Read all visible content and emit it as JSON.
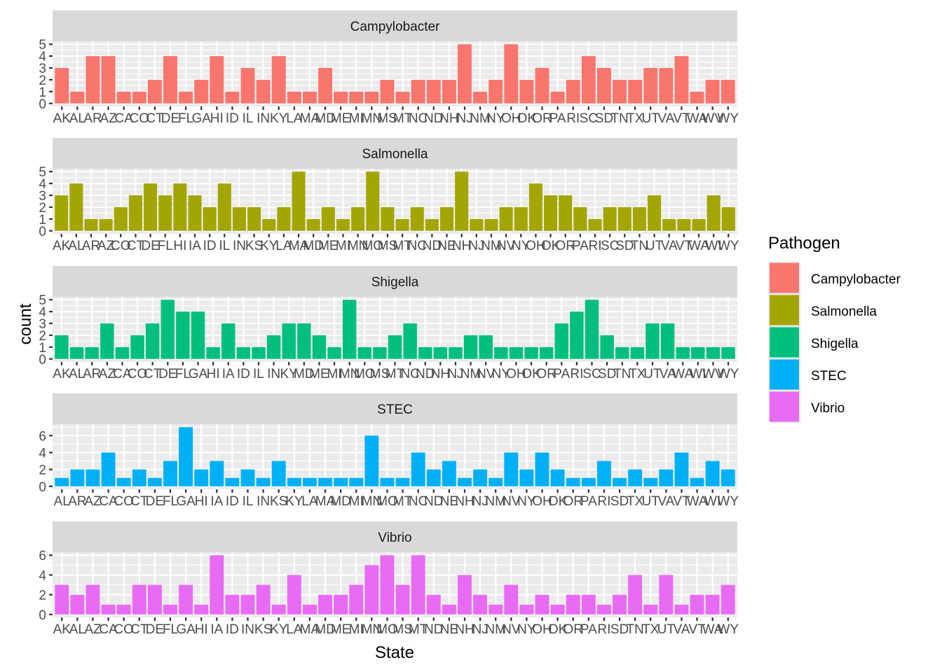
{
  "chart_data": {
    "type": "bar",
    "xlabel": "State",
    "ylabel": "count",
    "legend": {
      "title": "Pathogen",
      "position": "right",
      "entries": [
        {
          "label": "Campylobacter",
          "color": "#F8766D"
        },
        {
          "label": "Salmonella",
          "color": "#A3A500"
        },
        {
          "label": "Shigella",
          "color": "#00BF7D"
        },
        {
          "label": "STEC",
          "color": "#00B0F6"
        },
        {
          "label": "Vibrio",
          "color": "#E76BF3"
        }
      ]
    },
    "panels": [
      {
        "title": "Campylobacter",
        "color": "#F8766D",
        "ylim": [
          0,
          5
        ],
        "yticks": [
          0,
          1,
          2,
          3,
          4,
          5
        ],
        "categories": [
          "AK",
          "AL",
          "AR",
          "AZ",
          "CA",
          "CO",
          "CT",
          "DE",
          "FL",
          "GA",
          "HI",
          "ID",
          "IL",
          "IN",
          "KY",
          "LA",
          "MA",
          "MD",
          "ME",
          "MI",
          "MN",
          "MS",
          "MT",
          "NC",
          "ND",
          "NH",
          "NJ",
          "NM",
          "NY",
          "OH",
          "OK",
          "OR",
          "PA",
          "RI",
          "SC",
          "SD",
          "TN",
          "TX",
          "UT",
          "VA",
          "VT",
          "WA",
          "WV",
          "WY"
        ],
        "values": [
          3,
          1,
          4,
          4,
          1,
          1,
          2,
          4,
          1,
          2,
          4,
          1,
          3,
          2,
          4,
          1,
          1,
          3,
          1,
          1,
          1,
          2,
          1,
          2,
          2,
          2,
          5,
          1,
          2,
          5,
          2,
          3,
          1,
          2,
          4,
          3,
          2,
          2,
          3,
          3,
          4,
          1,
          2,
          2
        ]
      },
      {
        "title": "Salmonella",
        "color": "#A3A500",
        "ylim": [
          0,
          5
        ],
        "yticks": [
          0,
          1,
          2,
          3,
          4,
          5
        ],
        "categories": [
          "AK",
          "AL",
          "AR",
          "AZ",
          "CO",
          "CT",
          "DE",
          "FL",
          "HI",
          "IA",
          "ID",
          "IL",
          "IN",
          "KS",
          "KY",
          "LA",
          "MA",
          "MD",
          "ME",
          "MI",
          "MN",
          "MO",
          "MS",
          "MT",
          "NC",
          "ND",
          "NE",
          "NH",
          "NJ",
          "NM",
          "NV",
          "NY",
          "OH",
          "OK",
          "OR",
          "PA",
          "RI",
          "SC",
          "SD",
          "TN",
          "UT",
          "VA",
          "VT",
          "WA",
          "WI",
          "WY"
        ],
        "values": [
          3,
          4,
          1,
          1,
          2,
          3,
          4,
          3,
          4,
          3,
          2,
          4,
          2,
          2,
          1,
          2,
          5,
          1,
          2,
          1,
          2,
          5,
          2,
          1,
          2,
          1,
          2,
          5,
          1,
          1,
          2,
          2,
          4,
          3,
          3,
          2,
          1,
          2,
          2,
          2,
          3,
          1,
          1,
          1,
          3,
          2
        ]
      },
      {
        "title": "Shigella",
        "color": "#00BF7D",
        "ylim": [
          0,
          5
        ],
        "yticks": [
          0,
          1,
          2,
          3,
          4,
          5
        ],
        "categories": [
          "AK",
          "AL",
          "AR",
          "AZ",
          "CA",
          "CO",
          "CT",
          "DE",
          "FL",
          "GA",
          "HI",
          "IA",
          "ID",
          "IL",
          "IN",
          "KY",
          "MD",
          "ME",
          "MI",
          "MN",
          "MO",
          "MS",
          "MT",
          "NC",
          "ND",
          "NH",
          "NJ",
          "NM",
          "NV",
          "NY",
          "OH",
          "OK",
          "OR",
          "PA",
          "RI",
          "SC",
          "SD",
          "TN",
          "TX",
          "UT",
          "VA",
          "WA",
          "WI",
          "WV",
          "WY"
        ],
        "values": [
          2,
          1,
          1,
          3,
          1,
          2,
          3,
          5,
          4,
          4,
          1,
          3,
          1,
          1,
          2,
          3,
          3,
          2,
          1,
          5,
          1,
          1,
          2,
          3,
          1,
          1,
          1,
          2,
          2,
          1,
          1,
          1,
          1,
          3,
          4,
          5,
          2,
          1,
          1,
          3,
          3,
          1,
          1,
          1,
          1
        ]
      },
      {
        "title": "STEC",
        "color": "#00B0F6",
        "ylim": [
          0,
          7
        ],
        "yticks": [
          0,
          2,
          4,
          6
        ],
        "categories": [
          "AL",
          "AR",
          "AZ",
          "CA",
          "CO",
          "CT",
          "DE",
          "FL",
          "GA",
          "HI",
          "IA",
          "ID",
          "IL",
          "IN",
          "KS",
          "KY",
          "LA",
          "MA",
          "MD",
          "MI",
          "MN",
          "MO",
          "MT",
          "NC",
          "ND",
          "NE",
          "NH",
          "NJ",
          "NM",
          "NV",
          "NY",
          "OH",
          "OK",
          "OR",
          "PA",
          "RI",
          "SD",
          "TX",
          "UT",
          "VA",
          "VT",
          "WA",
          "WI",
          "WY"
        ],
        "values": [
          1,
          2,
          2,
          4,
          1,
          2,
          1,
          3,
          7,
          2,
          3,
          1,
          2,
          1,
          3,
          1,
          1,
          1,
          1,
          1,
          6,
          1,
          1,
          4,
          2,
          3,
          1,
          2,
          1,
          4,
          2,
          4,
          2,
          1,
          1,
          3,
          1,
          2,
          1,
          2,
          4,
          1,
          3,
          2
        ]
      },
      {
        "title": "Vibrio",
        "color": "#E76BF3",
        "ylim": [
          0,
          6
        ],
        "yticks": [
          0,
          2,
          4,
          6
        ],
        "categories": [
          "AK",
          "AL",
          "AZ",
          "CA",
          "CO",
          "CT",
          "DE",
          "FL",
          "GA",
          "HI",
          "IA",
          "ID",
          "IN",
          "KS",
          "KY",
          "LA",
          "MA",
          "MD",
          "ME",
          "MI",
          "MN",
          "MO",
          "MS",
          "MT",
          "ND",
          "NE",
          "NH",
          "NJ",
          "NM",
          "NV",
          "NY",
          "OH",
          "OK",
          "OR",
          "PA",
          "RI",
          "SD",
          "TN",
          "TX",
          "UT",
          "VA",
          "VT",
          "WA",
          "WY"
        ],
        "values": [
          3,
          2,
          3,
          1,
          1,
          3,
          3,
          1,
          3,
          1,
          6,
          2,
          2,
          3,
          1,
          4,
          1,
          2,
          2,
          3,
          5,
          6,
          3,
          6,
          2,
          1,
          4,
          2,
          1,
          3,
          1,
          2,
          1,
          2,
          2,
          1,
          2,
          4,
          1,
          4,
          1,
          2,
          2,
          3
        ]
      }
    ]
  }
}
